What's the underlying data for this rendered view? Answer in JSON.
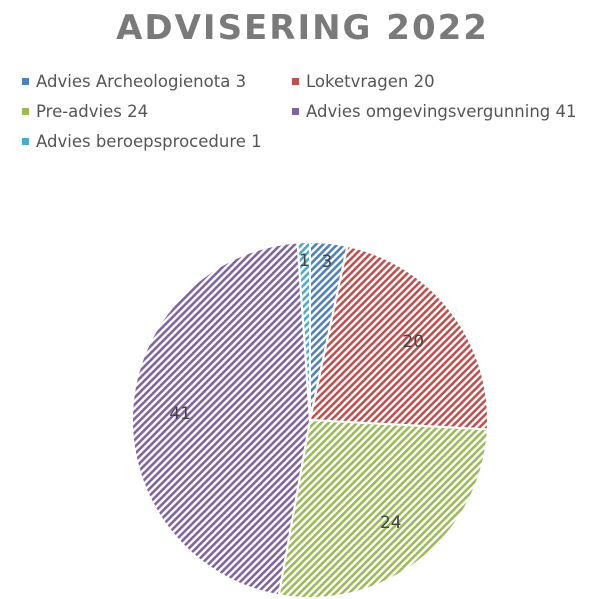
{
  "chart_data": {
    "type": "pie",
    "title": "ADVISERING 2022",
    "legend_position": "top",
    "slices": [
      {
        "label": "Advies Archeologienota",
        "value": 3,
        "legend": "Advies Archeologienota 3",
        "color": "#4f81bd"
      },
      {
        "label": "Loketvragen",
        "value": 20,
        "legend": "Loketvragen 20",
        "color": "#c0504d"
      },
      {
        "label": "Pre-advies",
        "value": 24,
        "legend": "Pre-advies 24",
        "color": "#9bbb59"
      },
      {
        "label": "Advies omgevingsvergunning",
        "value": 41,
        "legend": "Advies omgevingsvergunning 41",
        "color": "#8064a2"
      },
      {
        "label": "Advies beroepsprocedure",
        "value": 1,
        "legend": "Advies beroepsprocedure 1",
        "color": "#4bacc6"
      }
    ],
    "data_labels": [
      "3",
      "20",
      "24",
      "41",
      "1"
    ],
    "fill_style": "hatched"
  }
}
